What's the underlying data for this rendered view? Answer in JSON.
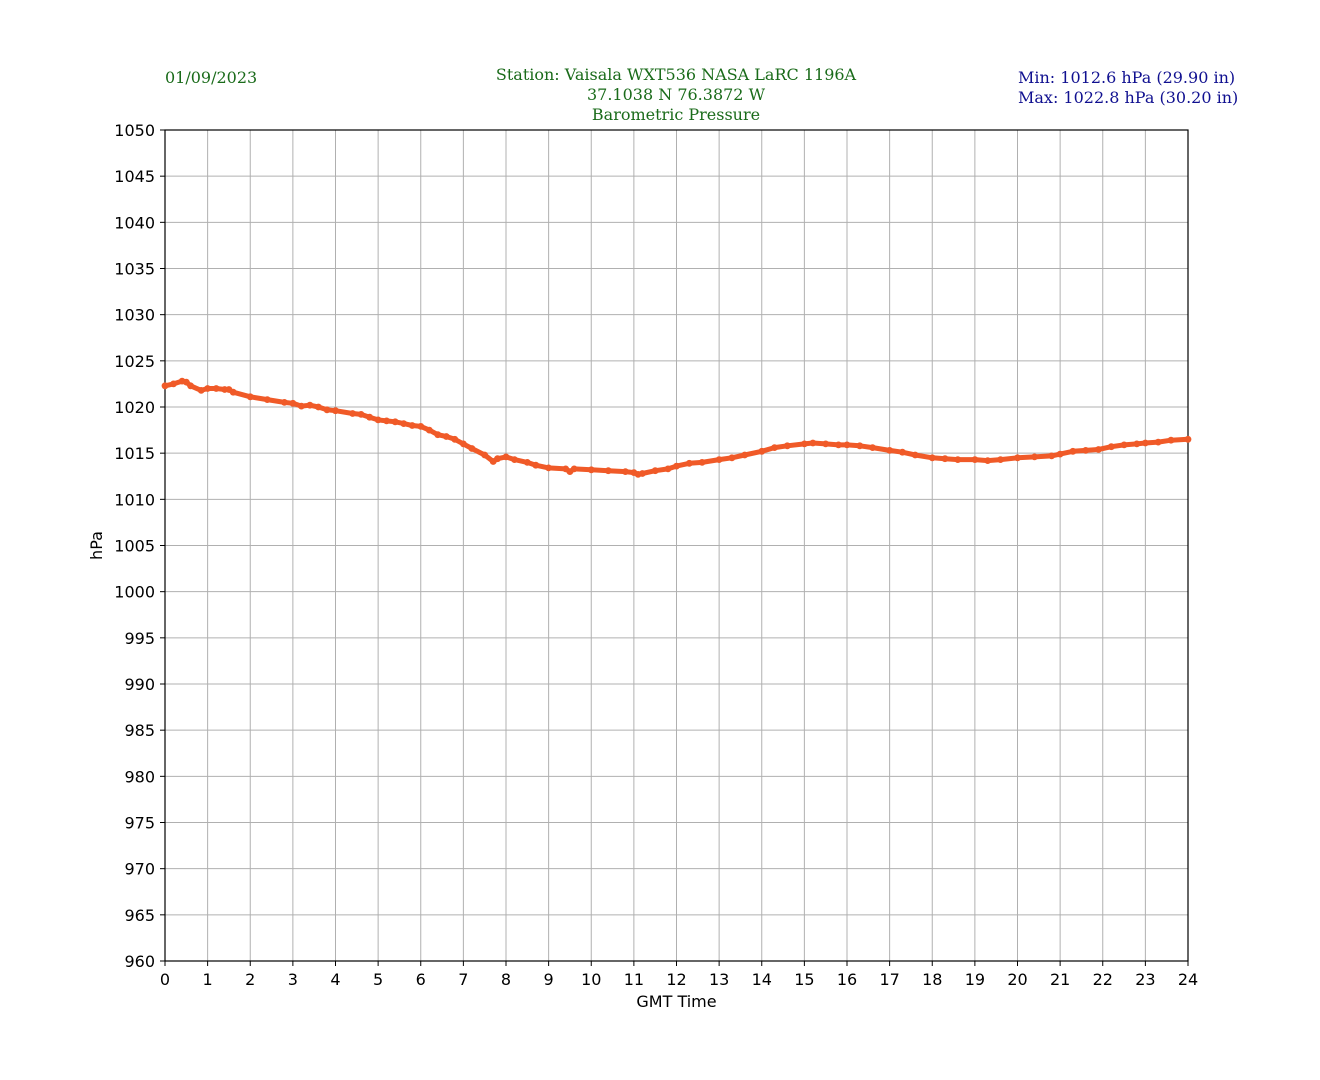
{
  "header": {
    "date": "01/09/2023",
    "station": "Station:  Vaisala WXT536  NASA LaRC 1196A",
    "coords": "37.1038 N 76.3872 W",
    "measure": "Barometric Pressure",
    "min": "Min: 1012.6 hPa (29.90 in)",
    "max": "Max: 1022.8 hPa (30.20 in)"
  },
  "colors": {
    "line": "#f05a28",
    "grid": "#b0b0b0",
    "header_green": "#1a6b1a",
    "header_blue": "#101090"
  },
  "chart_data": {
    "type": "line",
    "title": "Barometric Pressure",
    "xlabel": "GMT Time",
    "ylabel": "hPa",
    "xlim": [
      0,
      24
    ],
    "ylim": [
      960,
      1050
    ],
    "x_ticks": [
      0,
      1,
      2,
      3,
      4,
      5,
      6,
      7,
      8,
      9,
      10,
      11,
      12,
      13,
      14,
      15,
      16,
      17,
      18,
      19,
      20,
      21,
      22,
      23,
      24
    ],
    "y_ticks": [
      960,
      965,
      970,
      975,
      980,
      985,
      990,
      995,
      1000,
      1005,
      1010,
      1015,
      1020,
      1025,
      1030,
      1035,
      1040,
      1045,
      1050
    ],
    "grid": true,
    "series": [
      {
        "x": [
          0,
          0.2,
          0.4,
          0.5,
          0.6,
          0.85,
          1.0,
          1.2,
          1.4,
          1.5,
          1.6,
          2.0,
          2.4,
          2.8,
          3.0,
          3.2,
          3.4,
          3.6,
          3.8,
          4.0,
          4.4,
          4.6,
          4.8,
          5.0,
          5.2,
          5.4,
          5.6,
          5.8,
          6.0,
          6.2,
          6.4,
          6.6,
          6.8,
          7.0,
          7.2,
          7.5,
          7.7,
          7.8,
          8.0,
          8.2,
          8.5,
          8.7,
          9.0,
          9.4,
          9.5,
          9.6,
          10.0,
          10.4,
          10.8,
          11.0,
          11.1,
          11.2,
          11.5,
          11.8,
          12.0,
          12.3,
          12.6,
          13.0,
          13.3,
          13.6,
          14.0,
          14.3,
          14.6,
          15.0,
          15.2,
          15.5,
          15.8,
          16.0,
          16.3,
          16.6,
          17.0,
          17.3,
          17.6,
          18.0,
          18.3,
          18.6,
          19.0,
          19.3,
          19.6,
          20.0,
          20.4,
          20.8,
          21.0,
          21.3,
          21.6,
          21.9,
          22.2,
          22.5,
          22.8,
          23.0,
          23.3,
          23.6,
          24.0
        ],
        "y": [
          1022.3,
          1022.5,
          1022.8,
          1022.7,
          1022.3,
          1021.8,
          1022.0,
          1022.0,
          1021.9,
          1021.9,
          1021.6,
          1021.1,
          1020.8,
          1020.5,
          1020.4,
          1020.1,
          1020.2,
          1020.0,
          1019.7,
          1019.6,
          1019.3,
          1019.2,
          1018.9,
          1018.6,
          1018.5,
          1018.4,
          1018.2,
          1018.0,
          1017.9,
          1017.5,
          1017.0,
          1016.8,
          1016.5,
          1016.0,
          1015.5,
          1014.8,
          1014.1,
          1014.4,
          1014.6,
          1014.3,
          1014.0,
          1013.7,
          1013.4,
          1013.3,
          1013.0,
          1013.3,
          1013.2,
          1013.1,
          1013.0,
          1012.9,
          1012.7,
          1012.8,
          1013.1,
          1013.3,
          1013.6,
          1013.9,
          1014.0,
          1014.3,
          1014.5,
          1014.8,
          1015.2,
          1015.6,
          1015.8,
          1016.0,
          1016.1,
          1016.0,
          1015.9,
          1015.9,
          1015.8,
          1015.6,
          1015.3,
          1015.1,
          1014.8,
          1014.5,
          1014.4,
          1014.3,
          1014.3,
          1014.2,
          1014.3,
          1014.5,
          1014.6,
          1014.7,
          1014.9,
          1015.2,
          1015.3,
          1015.4,
          1015.7,
          1015.9,
          1016.0,
          1016.1,
          1016.2,
          1016.4,
          1016.5
        ]
      }
    ]
  }
}
